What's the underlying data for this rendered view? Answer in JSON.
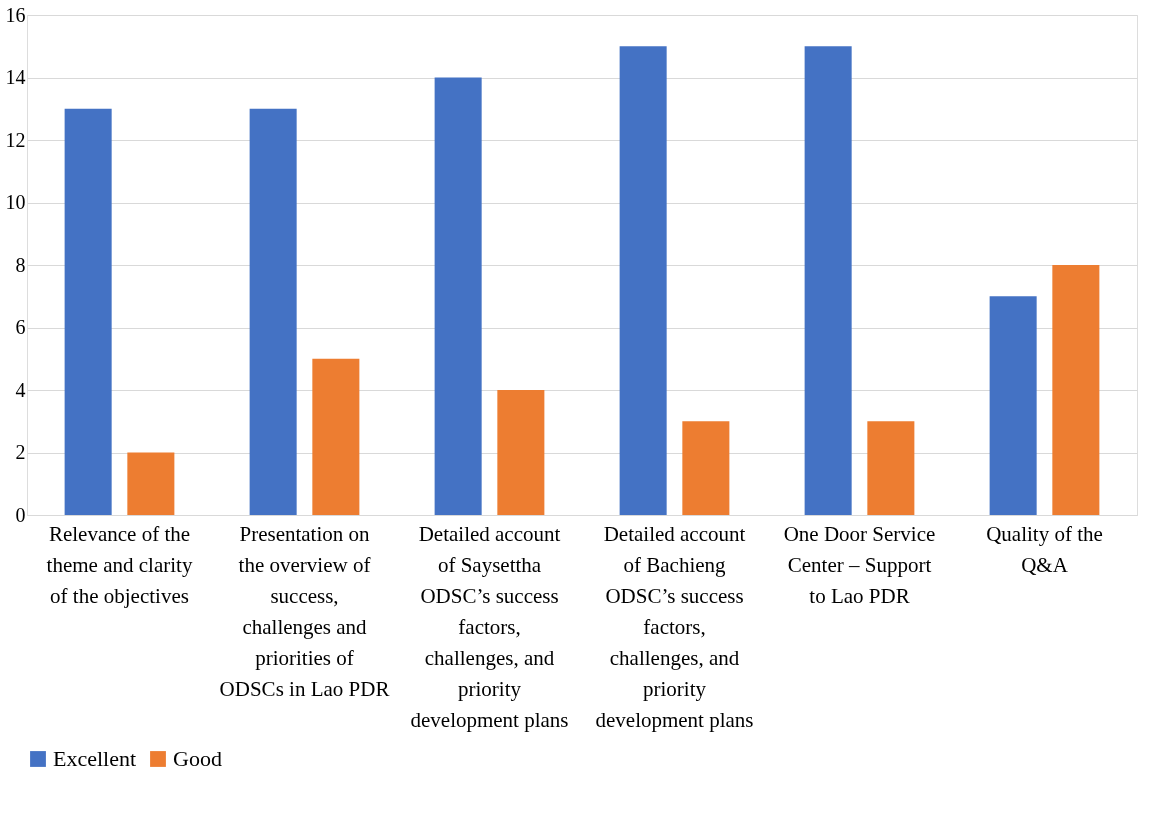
{
  "chart_data": {
    "type": "bar",
    "categories": [
      "Relevance of the theme and clarity of the objectives",
      "Presentation on the overview of success, challenges and priorities of ODSCs in Lao PDR",
      "Detailed account of Saysettha ODSC’s success factors, challenges, and priority development plans",
      "Detailed account of Bachieng ODSC’s success factors, challenges, and priority development plans",
      "One Door Service Center – Support to Lao PDR",
      "Quality of the Q&A"
    ],
    "series": [
      {
        "name": "Excellent",
        "color": "#4472c4",
        "values": [
          13,
          13,
          14,
          15,
          15,
          7
        ]
      },
      {
        "name": "Good",
        "color": "#ed7d31",
        "values": [
          2,
          5,
          4,
          3,
          3,
          8
        ]
      }
    ],
    "ylim": [
      0,
      16
    ],
    "yticks": [
      0,
      2,
      4,
      6,
      8,
      10,
      12,
      14,
      16
    ],
    "grid": "y",
    "legend": "bottom"
  }
}
